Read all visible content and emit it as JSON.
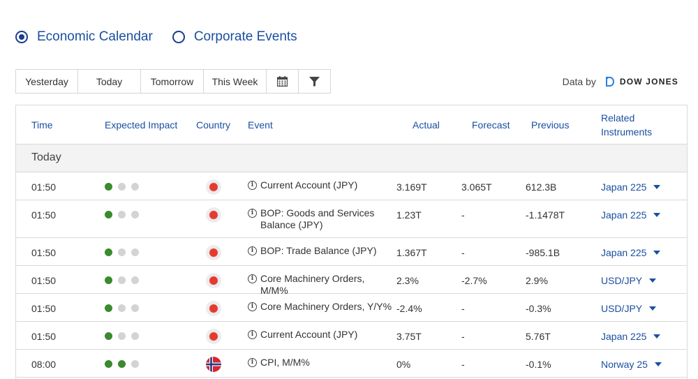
{
  "radio": {
    "economic_label": "Economic Calendar",
    "corporate_label": "Corporate Events"
  },
  "filters": {
    "yesterday": "Yesterday",
    "today": "Today",
    "tomorrow": "Tomorrow",
    "this_week": "This Week",
    "calendar_icon": "calendar-icon",
    "filter_icon": "filter-icon"
  },
  "data_by": {
    "label": "Data by",
    "provider": "DOW JONES"
  },
  "table": {
    "headers": {
      "time": "Time",
      "impact": "Expected Impact",
      "country": "Country",
      "event": "Event",
      "actual": "Actual",
      "forecast": "Forecast",
      "previous": "Previous",
      "related_line1": "Related",
      "related_line2": "Instruments"
    },
    "group_label": "Today",
    "rows": [
      {
        "time": "01:50",
        "impact": 1,
        "country": "jp",
        "event": "Current Account (JPY)",
        "actual": "3.169T",
        "forecast": "3.065T",
        "previous": "612.3B",
        "related": "Japan 225"
      },
      {
        "time": "01:50",
        "impact": 1,
        "country": "jp",
        "event": "BOP: Goods and Services Balance (JPY)",
        "actual": "1.23T",
        "forecast": "-",
        "previous": "-1.1478T",
        "related": "Japan 225"
      },
      {
        "time": "01:50",
        "impact": 1,
        "country": "jp",
        "event": "BOP: Trade Balance (JPY)",
        "actual": "1.367T",
        "forecast": "-",
        "previous": "-985.1B",
        "related": "Japan 225"
      },
      {
        "time": "01:50",
        "impact": 1,
        "country": "jp",
        "event": "Core Machinery Orders, M/M%",
        "actual": "2.3%",
        "forecast": "-2.7%",
        "previous": "2.9%",
        "related": "USD/JPY"
      },
      {
        "time": "01:50",
        "impact": 1,
        "country": "jp",
        "event": "Core Machinery Orders, Y/Y%",
        "actual": "-2.4%",
        "forecast": "-",
        "previous": "-0.3%",
        "related": "USD/JPY"
      },
      {
        "time": "01:50",
        "impact": 1,
        "country": "jp",
        "event": "Current Account (JPY)",
        "actual": "3.75T",
        "forecast": "-",
        "previous": "5.76T",
        "related": "Japan 225"
      },
      {
        "time": "08:00",
        "impact": 2,
        "country": "no",
        "event": "CPI, M/M%",
        "actual": "0%",
        "forecast": "-",
        "previous": "-0.1%",
        "related": "Norway 25"
      }
    ]
  },
  "colors": {
    "accent": "#1a4fa0",
    "impact_on": "#3a8a2e",
    "impact_off": "#d3d3d3"
  }
}
